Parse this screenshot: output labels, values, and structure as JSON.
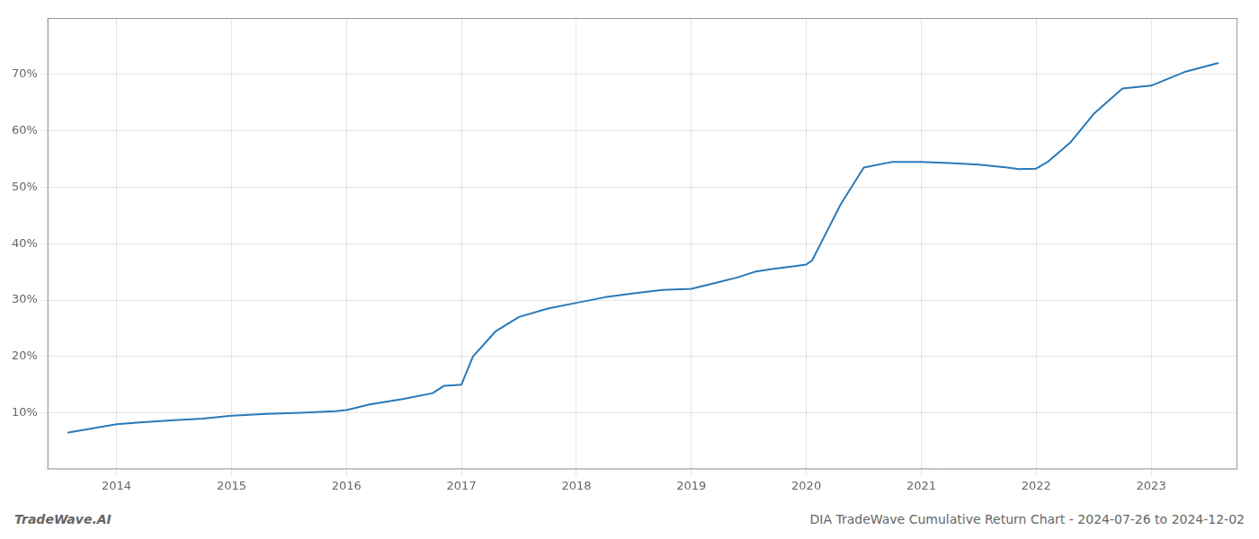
{
  "chart_data": {
    "type": "line",
    "title": "DIA TradeWave Cumulative Return Chart - 2024-07-26 to 2024-12-02",
    "annotations": [
      "TradeWave.AI"
    ],
    "x": [
      2013.58,
      2014.0,
      2014.2,
      2014.5,
      2014.75,
      2015.0,
      2015.3,
      2015.6,
      2015.9,
      2016.0,
      2016.2,
      2016.5,
      2016.75,
      2016.85,
      2017.0,
      2017.1,
      2017.3,
      2017.5,
      2017.75,
      2018.0,
      2018.25,
      2018.5,
      2018.75,
      2019.0,
      2019.2,
      2019.4,
      2019.55,
      2019.7,
      2019.9,
      2020.0,
      2020.05,
      2020.15,
      2020.3,
      2020.5,
      2020.75,
      2021.0,
      2021.25,
      2021.5,
      2021.75,
      2021.85,
      2022.0,
      2022.1,
      2022.3,
      2022.5,
      2022.75,
      2023.0,
      2023.3,
      2023.58
    ],
    "values": [
      6.5,
      8.0,
      8.3,
      8.7,
      9.0,
      9.5,
      9.8,
      10.0,
      10.3,
      10.5,
      11.5,
      12.5,
      13.5,
      14.8,
      15.0,
      20.0,
      24.5,
      27.0,
      28.5,
      29.5,
      30.5,
      31.2,
      31.8,
      32.0,
      33.0,
      34.0,
      35.0,
      35.5,
      36.0,
      36.3,
      37.0,
      41.0,
      47.0,
      53.5,
      54.5,
      54.5,
      54.3,
      54.0,
      53.5,
      53.2,
      53.3,
      54.5,
      58.0,
      63.0,
      67.5,
      68.0,
      70.5,
      72.0
    ],
    "color": "#2979b8",
    "xlim": [
      2013.4,
      2023.75
    ],
    "xticks": [
      2014,
      2015,
      2016,
      2017,
      2018,
      2019,
      2020,
      2021,
      2022,
      2023
    ],
    "ylim": [
      0,
      80
    ],
    "yticks": [
      {
        "value": 10,
        "label": "10%"
      },
      {
        "value": 20,
        "label": "20%"
      },
      {
        "value": 30,
        "label": "30%"
      },
      {
        "value": 40,
        "label": "40%"
      },
      {
        "value": 50,
        "label": "50%"
      },
      {
        "value": 60,
        "label": "60%"
      },
      {
        "value": 70,
        "label": "70%"
      }
    ],
    "grid": true
  }
}
